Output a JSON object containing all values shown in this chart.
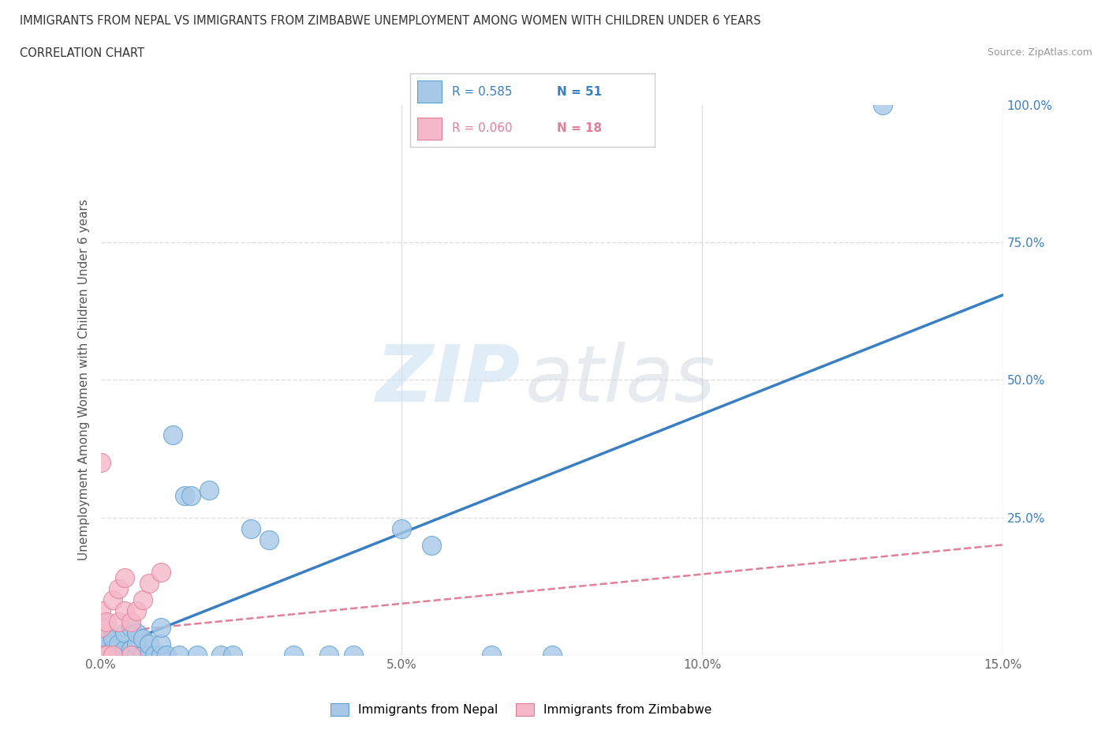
{
  "title_line1": "IMMIGRANTS FROM NEPAL VS IMMIGRANTS FROM ZIMBABWE UNEMPLOYMENT AMONG WOMEN WITH CHILDREN UNDER 6 YEARS",
  "title_line2": "CORRELATION CHART",
  "source": "Source: ZipAtlas.com",
  "ylabel": "Unemployment Among Women with Children Under 6 years",
  "xlim": [
    0.0,
    0.15
  ],
  "ylim": [
    0.0,
    1.0
  ],
  "nepal_color": "#a8c8e8",
  "nepal_edge": "#5aa0d0",
  "zimbabwe_color": "#f4b8c8",
  "zimbabwe_edge": "#e08098",
  "nepal_line_color": "#3a7fc1",
  "zimbabwe_line_color": "#e08098",
  "R_nepal": 0.585,
  "N_nepal": 51,
  "R_zimbabwe": 0.06,
  "N_zimbabwe": 18,
  "nepal_x": [
    0.0,
    0.0,
    0.0,
    0.0,
    0.0,
    0.001,
    0.001,
    0.001,
    0.001,
    0.002,
    0.002,
    0.002,
    0.003,
    0.003,
    0.003,
    0.004,
    0.004,
    0.004,
    0.005,
    0.005,
    0.005,
    0.006,
    0.006,
    0.006,
    0.007,
    0.007,
    0.008,
    0.008,
    0.009,
    0.01,
    0.01,
    0.01,
    0.011,
    0.012,
    0.013,
    0.014,
    0.015,
    0.016,
    0.018,
    0.02,
    0.022,
    0.025,
    0.028,
    0.032,
    0.038,
    0.042,
    0.05,
    0.055,
    0.065,
    0.075,
    0.13
  ],
  "nepal_y": [
    0.0,
    0.0,
    0.0,
    0.01,
    0.02,
    0.0,
    0.0,
    0.02,
    0.03,
    0.0,
    0.01,
    0.03,
    0.0,
    0.0,
    0.02,
    0.0,
    0.01,
    0.04,
    0.0,
    0.01,
    0.05,
    0.0,
    0.02,
    0.04,
    0.0,
    0.03,
    0.0,
    0.02,
    0.0,
    0.0,
    0.02,
    0.05,
    0.0,
    0.4,
    0.0,
    0.29,
    0.29,
    0.0,
    0.3,
    0.0,
    0.0,
    0.23,
    0.21,
    0.0,
    0.0,
    0.0,
    0.23,
    0.2,
    0.0,
    0.0,
    1.0
  ],
  "zimbabwe_x": [
    0.0,
    0.0,
    0.0,
    0.0,
    0.001,
    0.001,
    0.002,
    0.002,
    0.003,
    0.003,
    0.004,
    0.004,
    0.005,
    0.005,
    0.006,
    0.007,
    0.008,
    0.01
  ],
  "zimbabwe_y": [
    0.0,
    0.05,
    0.08,
    0.35,
    0.0,
    0.06,
    0.0,
    0.1,
    0.06,
    0.12,
    0.08,
    0.14,
    0.0,
    0.06,
    0.08,
    0.1,
    0.13,
    0.15
  ],
  "watermark_zip_color": "#cce0f0",
  "watermark_atlas_color": "#d0d8e0",
  "background_color": "#ffffff",
  "grid_color": "#e0e0e0",
  "grid_linestyle": "--"
}
